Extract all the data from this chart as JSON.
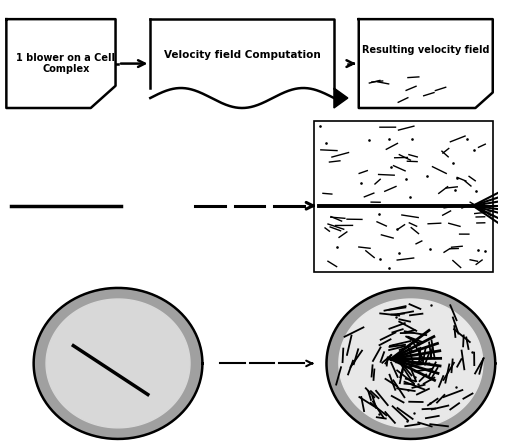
{
  "bg_color": "#ffffff",
  "box1_text": "1 blower on a Cell\nComplex",
  "box2_text": "Velocity field Computation",
  "box3_text": "Resulting velocity field",
  "box_edge_color": "#000000",
  "box_fill": "#ffffff",
  "box3_fill": "#ffffff",
  "box3_text_color": "#000000",
  "figw": 5.06,
  "figh": 4.47,
  "dpi": 100
}
